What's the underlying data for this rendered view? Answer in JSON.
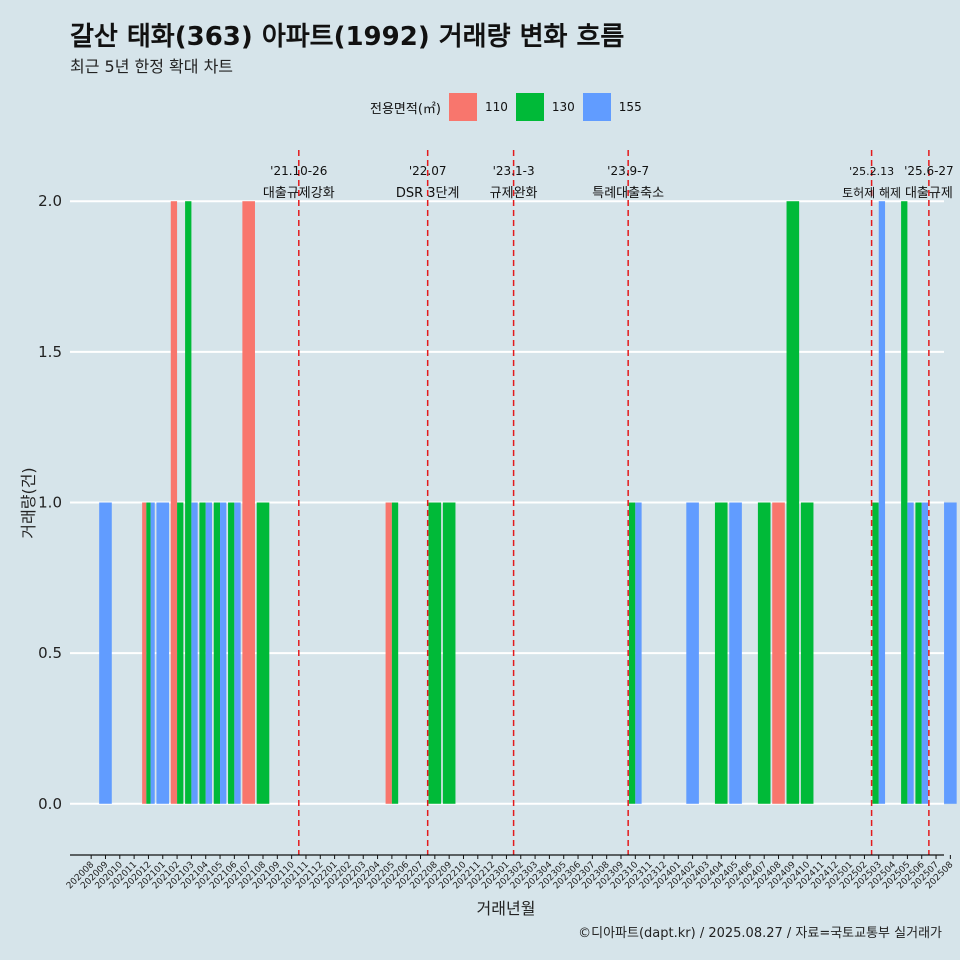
{
  "chart_data": {
    "type": "bar",
    "title": "갈산 태화(363) 아파트(1992) 거래량 변화 흐름",
    "subtitle": "최근 5년 한정 확대 차트",
    "xlabel": "거래년월",
    "ylabel": "거래량(건)",
    "ylim": [
      -0.17,
      2.17
    ],
    "yticks": [
      0.0,
      0.5,
      1.0,
      1.5,
      2.0
    ],
    "ytick_labels": [
      "0.0",
      "0.5",
      "1.0",
      "1.5",
      "2.0"
    ],
    "legend_title": "전용면적(㎡)",
    "legend_position": "top",
    "categories": [
      "202008",
      "202009",
      "202010",
      "202011",
      "202012",
      "202101",
      "202102",
      "202103",
      "202104",
      "202105",
      "202106",
      "202107",
      "202108",
      "202109",
      "202110",
      "202111",
      "202112",
      "202201",
      "202202",
      "202203",
      "202204",
      "202205",
      "202206",
      "202207",
      "202208",
      "202209",
      "202210",
      "202211",
      "202212",
      "202301",
      "202302",
      "202303",
      "202304",
      "202305",
      "202306",
      "202307",
      "202308",
      "202309",
      "202310",
      "202311",
      "202312",
      "202401",
      "202402",
      "202403",
      "202404",
      "202405",
      "202406",
      "202407",
      "202408",
      "202409",
      "202410",
      "202411",
      "202412",
      "202501",
      "202502",
      "202503",
      "202504",
      "202505",
      "202506",
      "202507",
      "202508"
    ],
    "series": [
      {
        "name": "110",
        "color": "#f8766d",
        "values": [
          0,
          0,
          0,
          0,
          1,
          0,
          2,
          0,
          0,
          0,
          0,
          2,
          0,
          0,
          0,
          0,
          0,
          0,
          0,
          0,
          0,
          1,
          0,
          0,
          0,
          0,
          0,
          0,
          0,
          0,
          0,
          0,
          0,
          0,
          0,
          0,
          0,
          0,
          0,
          0,
          0,
          0,
          0,
          0,
          0,
          0,
          0,
          0,
          1,
          0,
          0,
          0,
          0,
          0,
          0,
          0,
          0,
          0,
          0,
          0,
          0
        ]
      },
      {
        "name": "130",
        "color": "#00ba38",
        "values": [
          0,
          0,
          0,
          0,
          1,
          0,
          1,
          2,
          1,
          1,
          1,
          0,
          1,
          0,
          0,
          0,
          0,
          0,
          0,
          0,
          0,
          1,
          0,
          0,
          1,
          1,
          0,
          0,
          0,
          0,
          0,
          0,
          0,
          0,
          0,
          0,
          0,
          0,
          1,
          0,
          0,
          0,
          0,
          0,
          1,
          0,
          0,
          1,
          0,
          2,
          1,
          0,
          0,
          0,
          0,
          1,
          0,
          2,
          1,
          0,
          0
        ]
      },
      {
        "name": "155",
        "color": "#619cff",
        "values": [
          0,
          1,
          0,
          0,
          1,
          1,
          0,
          1,
          1,
          1,
          1,
          0,
          0,
          0,
          0,
          0,
          0,
          0,
          0,
          0,
          0,
          0,
          0,
          0,
          0,
          0,
          0,
          0,
          0,
          0,
          0,
          0,
          0,
          0,
          0,
          0,
          0,
          0,
          1,
          0,
          0,
          0,
          1,
          0,
          0,
          1,
          0,
          0,
          0,
          0,
          0,
          0,
          0,
          0,
          0,
          2,
          0,
          1,
          1,
          0,
          1
        ]
      }
    ],
    "annotations": [
      {
        "position": 14.5,
        "date": "'21.10-26",
        "label": "대출규제강화"
      },
      {
        "position": 23.5,
        "date": "'22.07",
        "label": "DSR 3단계"
      },
      {
        "position": 29.5,
        "date": "'23.1-3",
        "label": "규제완화"
      },
      {
        "position": 37.5,
        "date": "'23.9-7",
        "label": "특례대출축소"
      },
      {
        "position": 54.5,
        "date": "'25.2.13",
        "label": "토허제 해제"
      },
      {
        "position": 58.5,
        "date": "'25.6-27",
        "label": "대출규제"
      }
    ],
    "caption": "©디아파트(dapt.kr) / 2025.08.27 / 자료=국토교통부 실거래가"
  },
  "colors": {
    "background": "#d6e4ea",
    "grid": "#ffffff",
    "vline": "#e31a1c"
  }
}
